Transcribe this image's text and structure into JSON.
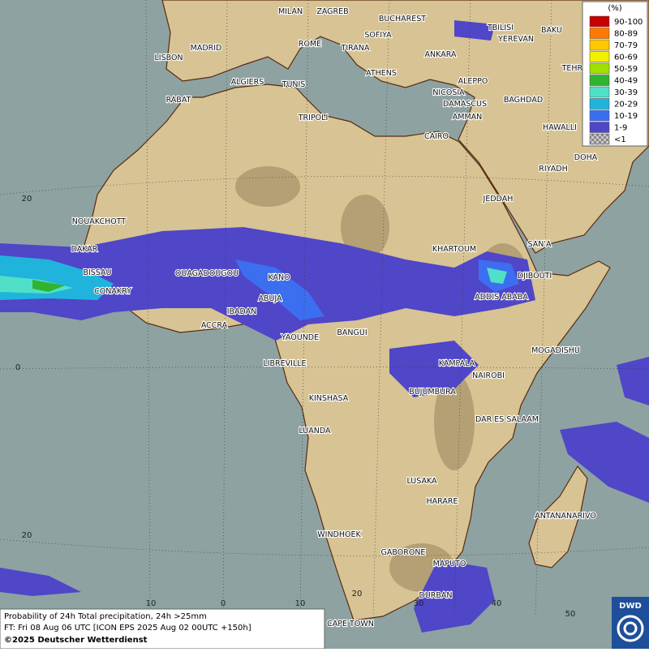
{
  "legend": {
    "unit": "(%)",
    "items": [
      {
        "label": "90-100",
        "color": "#c80000"
      },
      {
        "label": "80-89",
        "color": "#ff7800"
      },
      {
        "label": "70-79",
        "color": "#ffc800"
      },
      {
        "label": "60-69",
        "color": "#f0f000"
      },
      {
        "label": "50-59",
        "color": "#a0e000"
      },
      {
        "label": "40-49",
        "color": "#30b430"
      },
      {
        "label": "30-39",
        "color": "#50e0c8"
      },
      {
        "label": "20-29",
        "color": "#20b4dc"
      },
      {
        "label": "10-19",
        "color": "#3c6ef0"
      },
      {
        "label": "1-9",
        "color": "#5046c8"
      },
      {
        "label": "<1",
        "color": "#c8c8c8"
      }
    ]
  },
  "cities": [
    "MILAN",
    "ZAGREB",
    "BUCHAREST",
    "TBILISI",
    "BAKU",
    "YEREVAN",
    "MADRID",
    "ROME",
    "SOFIYA",
    "TIRANA",
    "ANKARA",
    "TEHRAN",
    "LISBON",
    "ATHENS",
    "ALGIERS",
    "TUNIS",
    "ALEPPO",
    "RABAT",
    "NICOSIA",
    "BAGHDAD",
    "DAMASCUS",
    "TRIPOLI",
    "AMMAN",
    "HAWALLI",
    "CAIRO",
    "DOHA",
    "RIYADH",
    "JEDDAH",
    "NOUAKCHOTT",
    "SAN'A",
    "DAKAR",
    "KHARTOUM",
    "BISSAU",
    "OUAGADOUGOU",
    "KANO",
    "DJIBOUTI",
    "CONAKRY",
    "ABUJA",
    "ADDIS ABABA",
    "IBADAN",
    "ACCRA",
    "BANGUI",
    "YAOUNDE",
    "MOGADISHU",
    "LIBREVILLE",
    "KAMPALA",
    "NAIROBI",
    "BUJUMBURA",
    "KINSHASA",
    "DAR ES SALAAM",
    "LUANDA",
    "LUSAKA",
    "HARARE",
    "ANTANANARIVO",
    "WINDHOEK",
    "GABORONE",
    "MAPUTO",
    "DURBAN",
    "CAPE TOWN"
  ],
  "grid_labels": {
    "latitude": [
      "20",
      "0",
      "20"
    ],
    "longitude": [
      "10",
      "0",
      "10",
      "20",
      "30",
      "40",
      "50"
    ]
  },
  "footer": {
    "line1": "Probability of 24h Total precipitation, 24h >25mm",
    "line2": "FT: Fri 08 Aug 06 UTC [ICON EPS 2025 Aug 02 00UTC +150h]",
    "line3": "©2025 Deutscher Wetterdienst"
  },
  "logo": "DWD"
}
